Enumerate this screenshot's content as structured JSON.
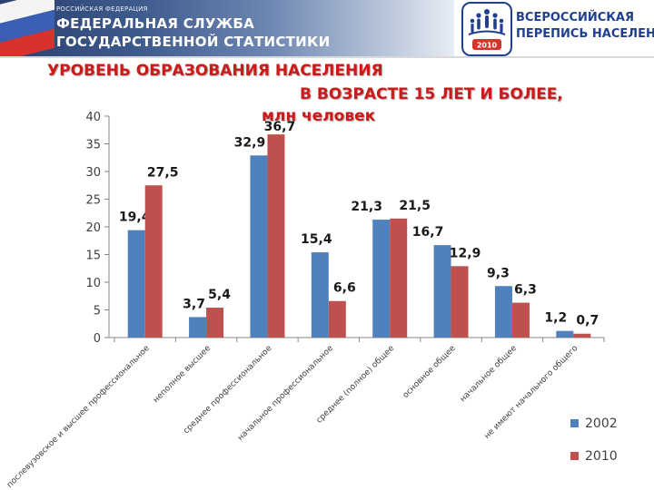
{
  "header": {
    "ministry_small": "РОССИЙСКАЯ ФЕДЕРАЦИЯ",
    "ministry_line1": "ФЕДЕРАЛЬНАЯ СЛУЖБА",
    "ministry_line2": "ГОСУДАРСТВЕННОЙ СТАТИСТИКИ",
    "census_line1": "ВСЕРОССИЙСКАЯ",
    "census_line2": "ПЕРЕПИСЬ НАСЕЛЕНИЯ",
    "census_year": "2010"
  },
  "slide_title": {
    "line1": "УРОВЕНЬ ОБРАЗОВАНИЯ НАСЕЛЕНИЯ",
    "line2": "В ВОЗРАСТЕ 15 ЛЕТ И БОЛЕЕ,",
    "line3": "млн человек"
  },
  "colors": {
    "series_2002": "#4f81bd",
    "series_2010": "#c0504d",
    "title_red": "#cc1a1a",
    "brand_blue": "#1f3f8f"
  },
  "chart_data": {
    "type": "bar",
    "title": "УРОВЕНЬ ОБРАЗОВАНИЯ НАСЕЛЕНИЯ В ВОЗРАСТЕ 15 ЛЕТ И БОЛЕЕ, млн человек",
    "categories": [
      "послевузовское и высшее профессиональное",
      "неполное высшее",
      "среднее профессиональное",
      "начальное профессиональное",
      "среднее (полное) общее",
      "основное общее",
      "начальное общее",
      "не имеют начального общего"
    ],
    "series": [
      {
        "name": "2002",
        "values": [
          19.4,
          3.7,
          32.9,
          15.4,
          21.3,
          16.7,
          9.3,
          1.2
        ],
        "labels": [
          "19,4",
          "3,7",
          "32,9",
          "15,4",
          "21,3",
          "16,7",
          "9,3",
          "1,2"
        ]
      },
      {
        "name": "2010",
        "values": [
          27.5,
          5.4,
          36.7,
          6.6,
          21.5,
          12.9,
          6.3,
          0.7
        ],
        "labels": [
          "27,5",
          "5,4",
          "36,7",
          "6,6",
          "21,5",
          "12,9",
          "6,3",
          "0,7"
        ]
      }
    ],
    "ylim": [
      0,
      40
    ],
    "yticks": [
      0,
      5,
      10,
      15,
      20,
      25,
      30,
      35,
      40
    ],
    "legend_position": "bottom-right",
    "grid": false
  }
}
